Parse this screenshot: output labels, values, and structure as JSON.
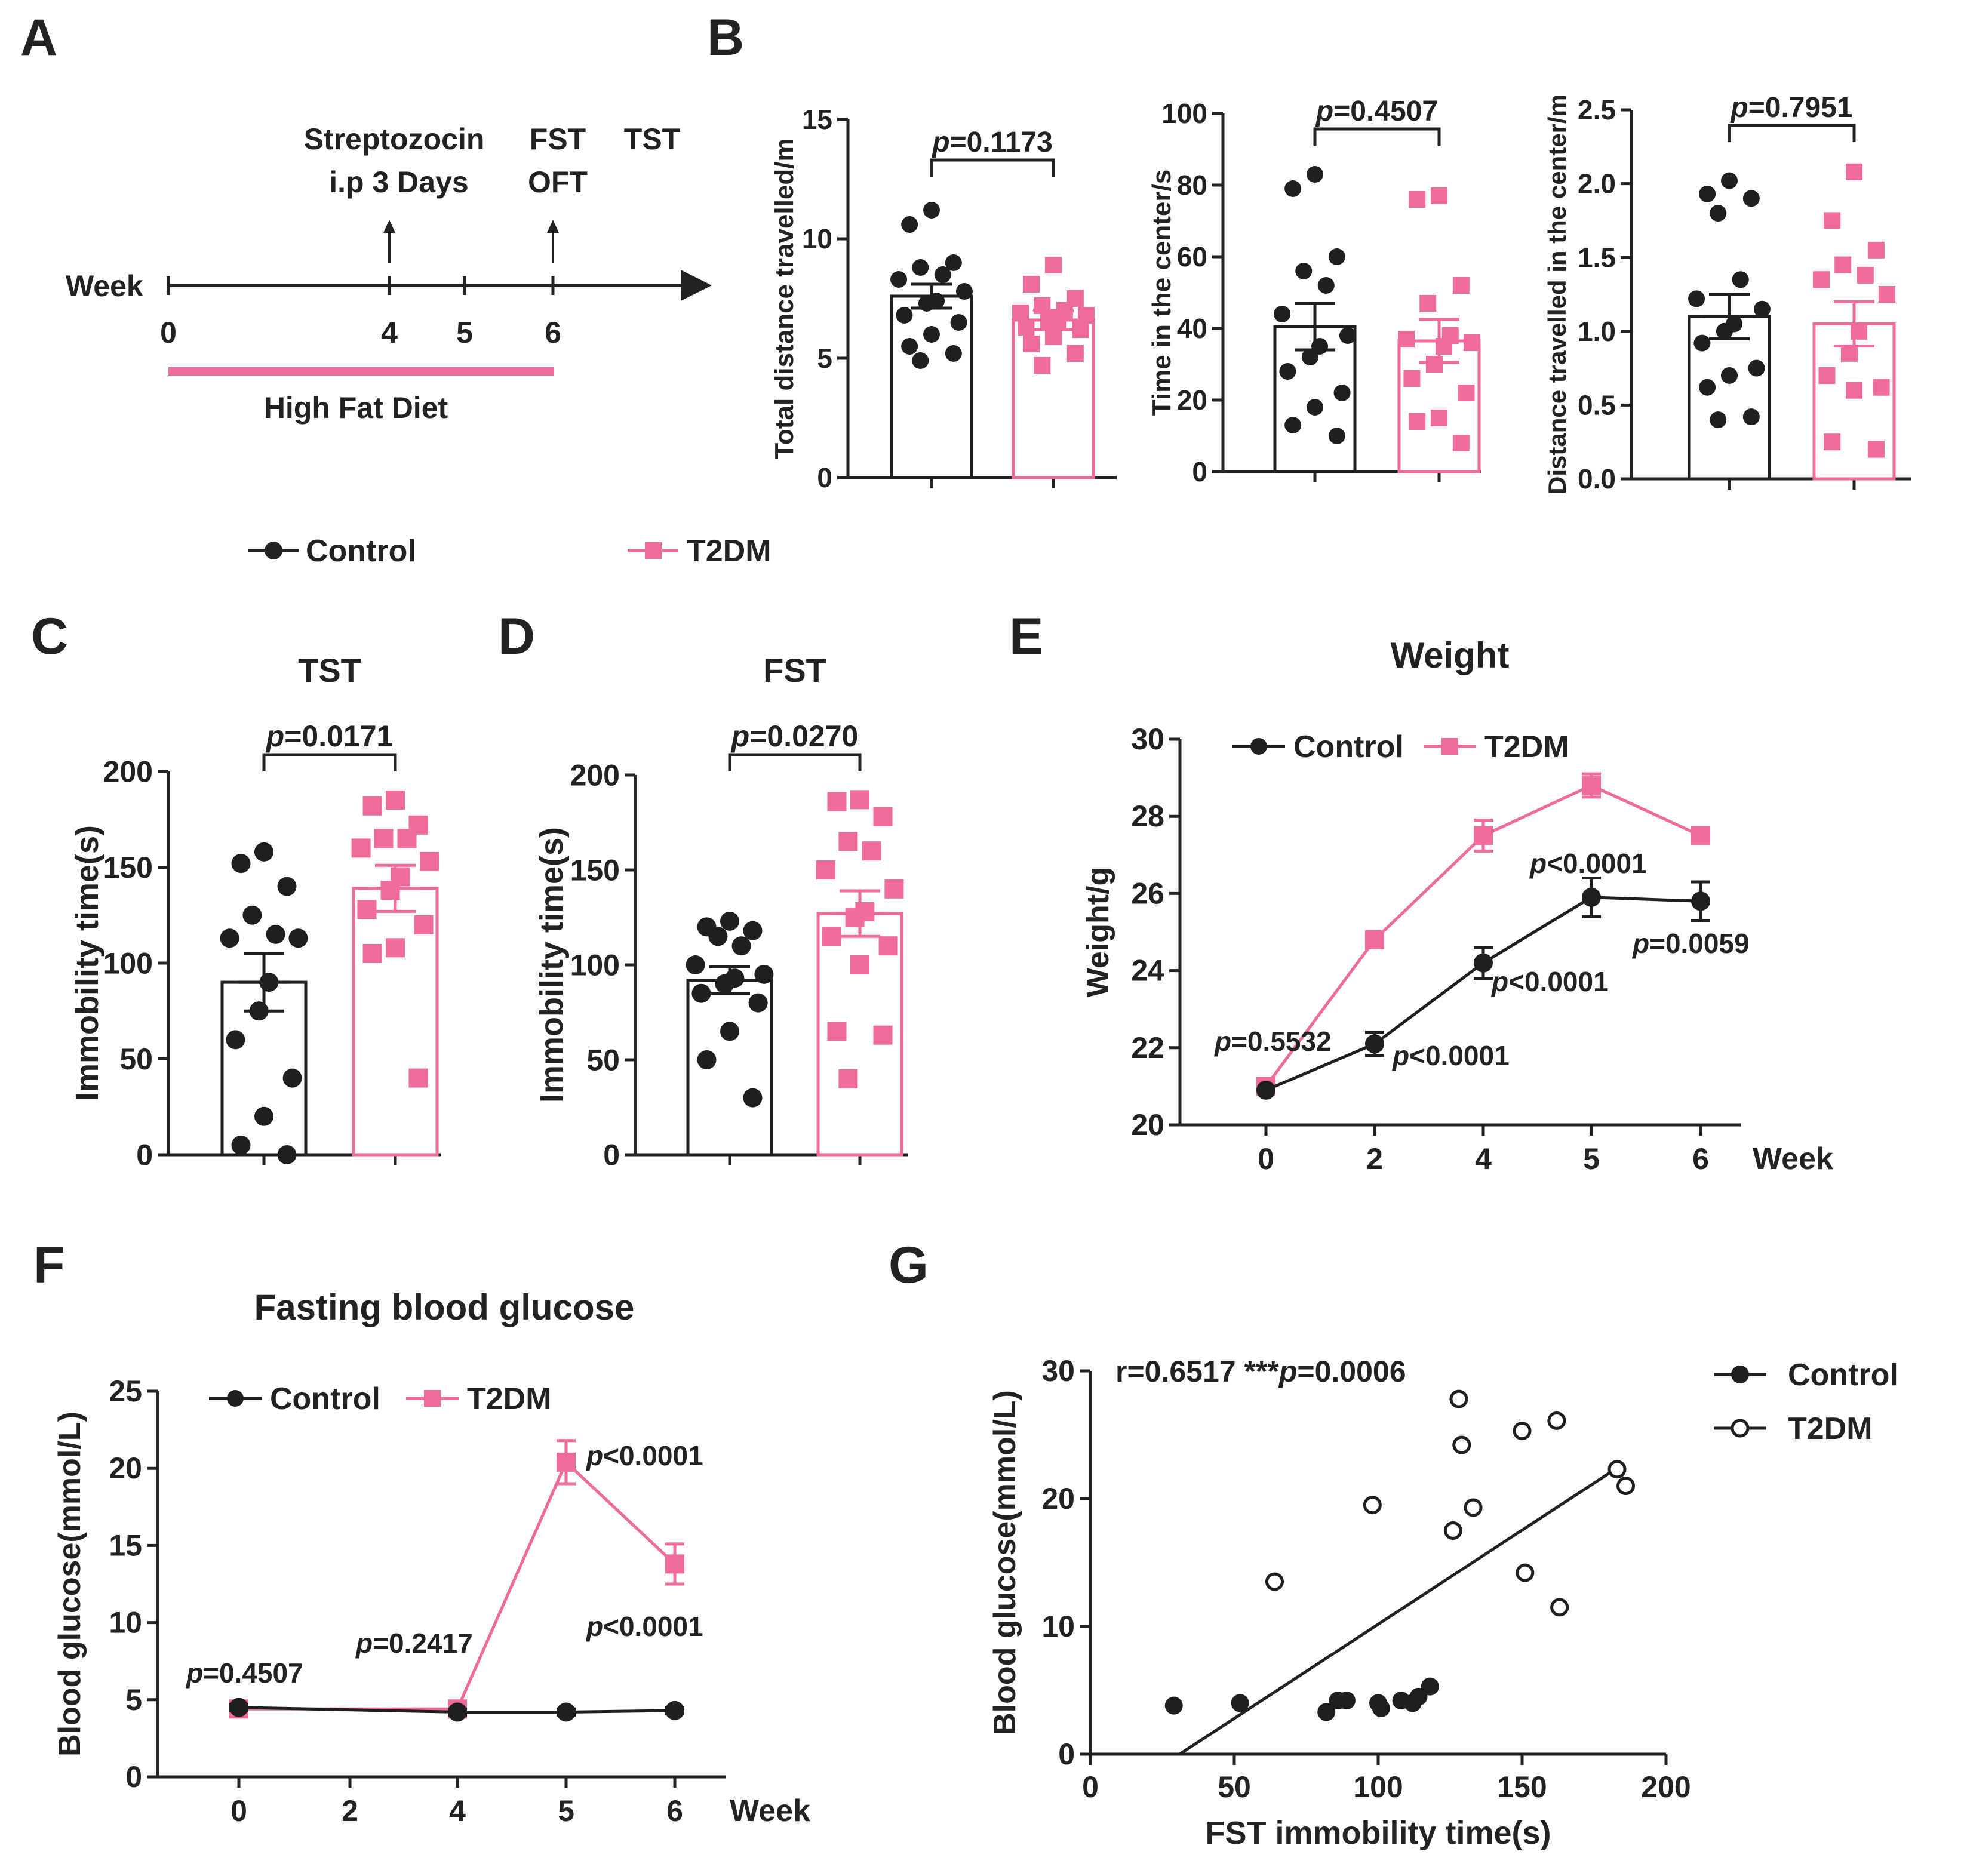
{
  "colors": {
    "control": "#1f1f1f",
    "t2dm": "#ee6b9b",
    "axis": "#222222"
  },
  "panel_letters": [
    "A",
    "B",
    "C",
    "D",
    "E",
    "F",
    "G"
  ],
  "legend_top": {
    "control": "Control",
    "t2dm": "T2DM"
  },
  "timeline": {
    "week_label": "Week",
    "ticks": [
      "0",
      "4",
      "5",
      "6"
    ],
    "stz_line1": "Streptozocin",
    "stz_line2": "i.p 3 Days",
    "fst": "FST",
    "oft": "OFT",
    "tst": "TST",
    "diet": "High Fat Diet"
  },
  "chart_data": [
    {
      "id": "B1",
      "type": "bar",
      "ylabel": "Total distance travelled/m",
      "ylim": [
        0,
        15
      ],
      "yticks": [
        "0",
        "5",
        "10",
        "15"
      ],
      "p_label": "p=0.1173",
      "groups": [
        {
          "name": "Control",
          "mean": 7.6,
          "sem": 0.5,
          "points": [
            11.2,
            10.6,
            9.0,
            8.8,
            8.5,
            8.3,
            7.8,
            7.4,
            7.3,
            6.8,
            6.5,
            6.0,
            5.5,
            5.2,
            4.9
          ]
        },
        {
          "name": "T2DM",
          "mean": 6.6,
          "sem": 0.4,
          "points": [
            8.9,
            8.1,
            7.5,
            7.2,
            7.0,
            6.9,
            6.8,
            6.6,
            6.5,
            6.3,
            6.2,
            5.9,
            5.6,
            5.2,
            4.7
          ]
        }
      ]
    },
    {
      "id": "B2",
      "type": "bar",
      "ylabel": "Time in the center/s",
      "ylim": [
        0,
        100
      ],
      "yticks": [
        "0",
        "20",
        "40",
        "60",
        "80",
        "100"
      ],
      "p_label": "p=0.4507",
      "groups": [
        {
          "name": "Control",
          "mean": 40.5,
          "sem": 6.5,
          "points": [
            83,
            79,
            60,
            56,
            52,
            44,
            38,
            35,
            32,
            28,
            22,
            18,
            13,
            10
          ]
        },
        {
          "name": "T2DM",
          "mean": 36.5,
          "sem": 6.0,
          "points": [
            77,
            76,
            52,
            47,
            38,
            37,
            36,
            35,
            30,
            26,
            22,
            15,
            14,
            8
          ]
        }
      ]
    },
    {
      "id": "B3",
      "type": "bar",
      "ylabel": "Distance travelled in the center/m",
      "ylim": [
        0,
        2.5
      ],
      "yticks": [
        "0.0",
        "0.5",
        "1.0",
        "1.5",
        "2.0",
        "2.5"
      ],
      "p_label": "p=0.7951",
      "groups": [
        {
          "name": "Control",
          "mean": 1.1,
          "sem": 0.15,
          "points": [
            2.02,
            1.93,
            1.9,
            1.8,
            1.35,
            1.22,
            1.15,
            1.05,
            1.0,
            0.92,
            0.75,
            0.7,
            0.62,
            0.42,
            0.4
          ]
        },
        {
          "name": "T2DM",
          "mean": 1.05,
          "sem": 0.15,
          "points": [
            2.08,
            1.75,
            1.55,
            1.45,
            1.38,
            1.35,
            1.25,
            1.0,
            0.85,
            0.7,
            0.62,
            0.6,
            0.25,
            0.2
          ]
        }
      ]
    },
    {
      "id": "C",
      "type": "bar",
      "title": "TST",
      "ylabel": "Immobility time(s)",
      "ylim": [
        0,
        200
      ],
      "yticks": [
        "0",
        "50",
        "100",
        "150",
        "200"
      ],
      "p_label": "p=0.0171",
      "groups": [
        {
          "name": "Control",
          "mean": 90,
          "sem": 15,
          "points": [
            158,
            152,
            140,
            125,
            115,
            113,
            113,
            90,
            75,
            60,
            40,
            20,
            5,
            0
          ]
        },
        {
          "name": "T2DM",
          "mean": 139,
          "sem": 12,
          "points": [
            185,
            182,
            172,
            165,
            165,
            160,
            153,
            145,
            138,
            128,
            120,
            108,
            105,
            40
          ]
        }
      ]
    },
    {
      "id": "D",
      "type": "bar",
      "title": "FST",
      "ylabel": "Immobility time(s)",
      "ylim": [
        0,
        200
      ],
      "yticks": [
        "0",
        "50",
        "100",
        "150",
        "200"
      ],
      "p_label": "p=0.0270",
      "groups": [
        {
          "name": "Control",
          "mean": 92,
          "sem": 7,
          "points": [
            123,
            120,
            118,
            115,
            110,
            100,
            95,
            93,
            90,
            85,
            80,
            65,
            50,
            30
          ]
        },
        {
          "name": "T2DM",
          "mean": 127,
          "sem": 12,
          "points": [
            187,
            186,
            178,
            165,
            160,
            150,
            140,
            128,
            125,
            115,
            110,
            100,
            65,
            63,
            40
          ]
        }
      ]
    },
    {
      "id": "E",
      "type": "line",
      "title": "Weight",
      "ylabel": "Weight/g",
      "xlabel": "Week",
      "ylim": [
        20,
        30
      ],
      "yticks": [
        "20",
        "22",
        "24",
        "26",
        "28",
        "30"
      ],
      "xticks": [
        "0",
        "2",
        "4",
        "5",
        "6"
      ],
      "legend": [
        "Control",
        "T2DM"
      ],
      "series": [
        {
          "name": "Control",
          "points": [
            [
              0,
              20.9,
              0.1
            ],
            [
              2,
              22.1,
              0.3
            ],
            [
              4,
              24.2,
              0.4
            ],
            [
              5,
              25.9,
              0.5
            ],
            [
              6,
              25.8,
              0.5
            ]
          ]
        },
        {
          "name": "T2DM",
          "points": [
            [
              0,
              21.0,
              0.1
            ],
            [
              2,
              24.8,
              0.2
            ],
            [
              4,
              27.5,
              0.4
            ],
            [
              5,
              28.8,
              0.3
            ],
            [
              6,
              27.5,
              0.2
            ]
          ]
        }
      ],
      "annotations": [
        "p=0.5532",
        "p<0.0001",
        "p<0.0001",
        "p<0.0001",
        "p=0.0059"
      ]
    },
    {
      "id": "F",
      "type": "line",
      "title": "Fasting blood glucose",
      "ylabel": "Blood glucose(mmol/L)",
      "xlabel": "Week",
      "ylim": [
        0,
        25
      ],
      "yticks": [
        "0",
        "5",
        "10",
        "15",
        "20",
        "25"
      ],
      "xticks": [
        "0",
        "2",
        "4",
        "5",
        "6"
      ],
      "legend": [
        "Control",
        "T2DM"
      ],
      "series": [
        {
          "name": "Control",
          "points": [
            [
              0,
              4.5,
              0.2
            ],
            [
              4,
              4.2,
              0.2
            ],
            [
              5,
              4.2,
              0.2
            ],
            [
              6,
              4.3,
              0.2
            ]
          ]
        },
        {
          "name": "T2DM",
          "points": [
            [
              0,
              4.4,
              0.2
            ],
            [
              4,
              4.4,
              0.2
            ],
            [
              5,
              20.4,
              1.4
            ],
            [
              6,
              13.8,
              1.3
            ]
          ]
        }
      ],
      "annotations": [
        "p=0.4507",
        "p=0.2417",
        "p<0.0001",
        "p<0.0001"
      ]
    },
    {
      "id": "G",
      "type": "scatter",
      "xlabel": "FST immobility time(s)",
      "ylabel": "Blood glucose(mmol/L)",
      "xlim": [
        0,
        200
      ],
      "ylim": [
        0,
        30
      ],
      "xticks": [
        "0",
        "50",
        "100",
        "150",
        "200"
      ],
      "yticks": [
        "0",
        "10",
        "20",
        "30"
      ],
      "stats": "r=0.6517 ***p=0.0006",
      "legend": [
        "Control",
        "T2DM"
      ],
      "series": [
        {
          "name": "Control",
          "points": [
            [
              29,
              3.8
            ],
            [
              52,
              4.0
            ],
            [
              82,
              3.3
            ],
            [
              86,
              4.2
            ],
            [
              89,
              4.2
            ],
            [
              100,
              4.0
            ],
            [
              101,
              3.6
            ],
            [
              108,
              4.2
            ],
            [
              112,
              4.0
            ],
            [
              114,
              4.5
            ],
            [
              118,
              5.3
            ]
          ]
        },
        {
          "name": "T2DM",
          "points": [
            [
              64,
              13.5
            ],
            [
              98,
              19.5
            ],
            [
              126,
              17.5
            ],
            [
              128,
              27.8
            ],
            [
              129,
              24.2
            ],
            [
              133,
              19.3
            ],
            [
              150,
              25.3
            ],
            [
              151,
              14.2
            ],
            [
              162,
              26.1
            ],
            [
              163,
              11.5
            ],
            [
              183,
              22.3
            ],
            [
              186,
              21.0
            ]
          ]
        }
      ],
      "regression": {
        "x": [
          31,
          183
        ],
        "y": [
          0,
          22.4
        ]
      }
    }
  ]
}
